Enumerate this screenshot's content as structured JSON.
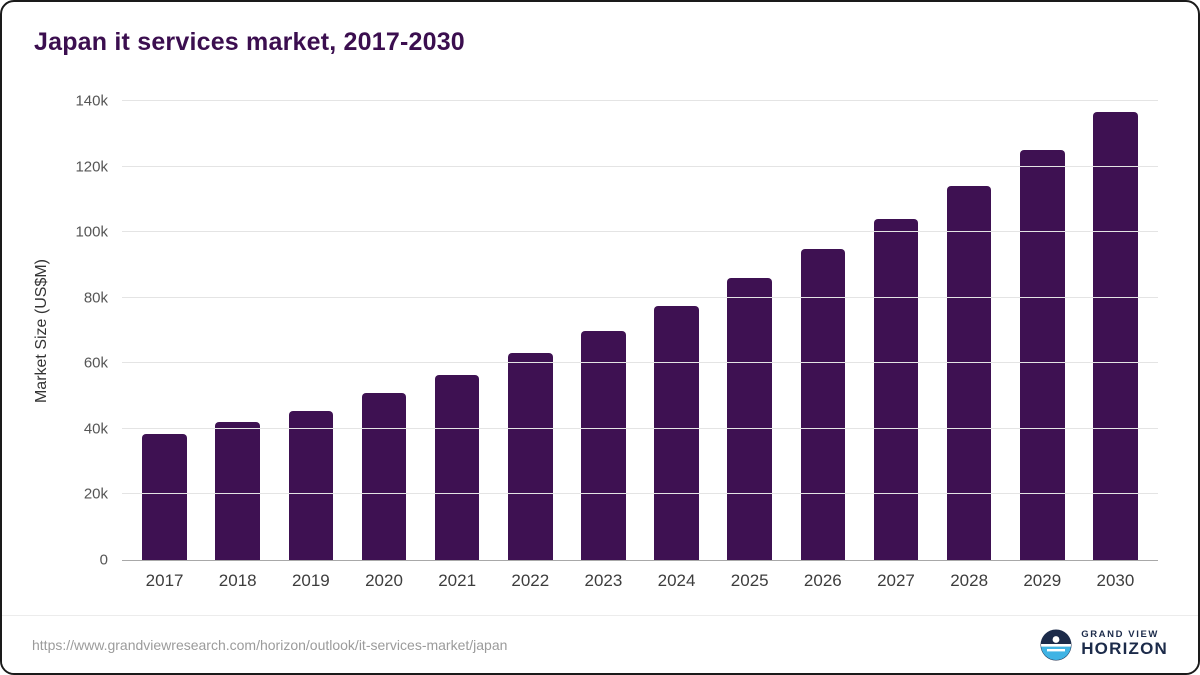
{
  "chart_data": {
    "type": "bar",
    "title": "Japan it services market, 2017-2030",
    "xlabel": "",
    "ylabel": "Market Size (US$M)",
    "categories": [
      "2017",
      "2018",
      "2019",
      "2020",
      "2021",
      "2022",
      "2023",
      "2024",
      "2025",
      "2026",
      "2027",
      "2028",
      "2029",
      "2030"
    ],
    "values": [
      38500,
      42000,
      45500,
      51000,
      56500,
      63000,
      70000,
      77500,
      86000,
      95000,
      104000,
      114000,
      125000,
      136500
    ],
    "ylim": [
      0,
      140000
    ],
    "ytick_labels": [
      "0",
      "20k",
      "40k",
      "60k",
      "80k",
      "100k",
      "120k",
      "140k"
    ],
    "grid": true,
    "legend": "none",
    "bar_color": "#3e1152"
  },
  "footer": {
    "source_url": "https://www.grandviewresearch.com/horizon/outlook/it-services-market/japan",
    "brand_top": "GRAND VIEW",
    "brand_bottom": "HORIZON"
  },
  "colors": {
    "accent": "#3e1152",
    "title": "#3b0e4f",
    "gridline": "#e4e4e4",
    "logo_navy": "#1c2b4a",
    "logo_blue": "#3fb3e4"
  }
}
